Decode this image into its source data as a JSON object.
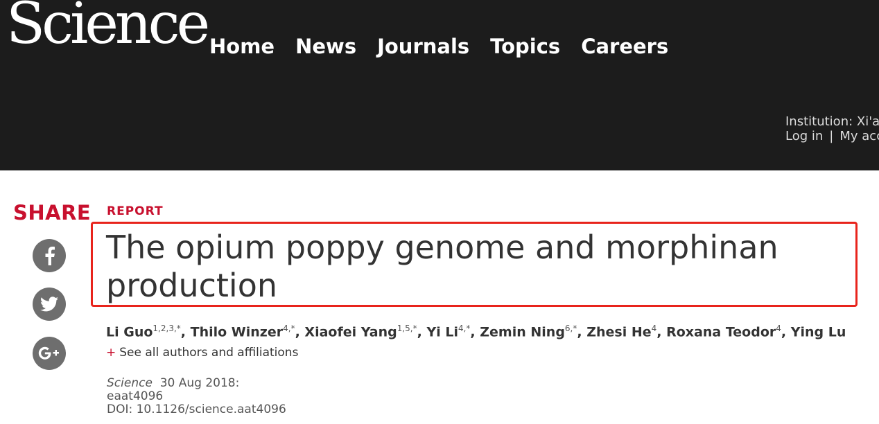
{
  "header": {
    "logo": "Science",
    "nav": [
      "Home",
      "News",
      "Journals",
      "Topics",
      "Careers"
    ],
    "institution": "Institution: Xi'an",
    "login": "Log in",
    "account": "My acc"
  },
  "share": {
    "title": "SHARE"
  },
  "article": {
    "type": "REPORT",
    "title": "The opium poppy genome and morphinan production",
    "authors": [
      {
        "name": "Li Guo",
        "aff": "1,2,3,*"
      },
      {
        "name": "Thilo Winzer",
        "aff": "4,*"
      },
      {
        "name": "Xiaofei Yang",
        "aff": "1,5,*"
      },
      {
        "name": "Yi Li",
        "aff": "4,*"
      },
      {
        "name": "Zemin Ning",
        "aff": "6,*"
      },
      {
        "name": "Zhesi He",
        "aff": "4"
      },
      {
        "name": "Roxana Teodor",
        "aff": "4"
      },
      {
        "name": "Ying Lu",
        "aff": ""
      }
    ],
    "see_all": "See all authors and affiliations",
    "journal": "Science",
    "date": "30 Aug 2018:",
    "article_id": "eaat4096",
    "doi": "DOI: 10.1126/science.aat4096"
  }
}
